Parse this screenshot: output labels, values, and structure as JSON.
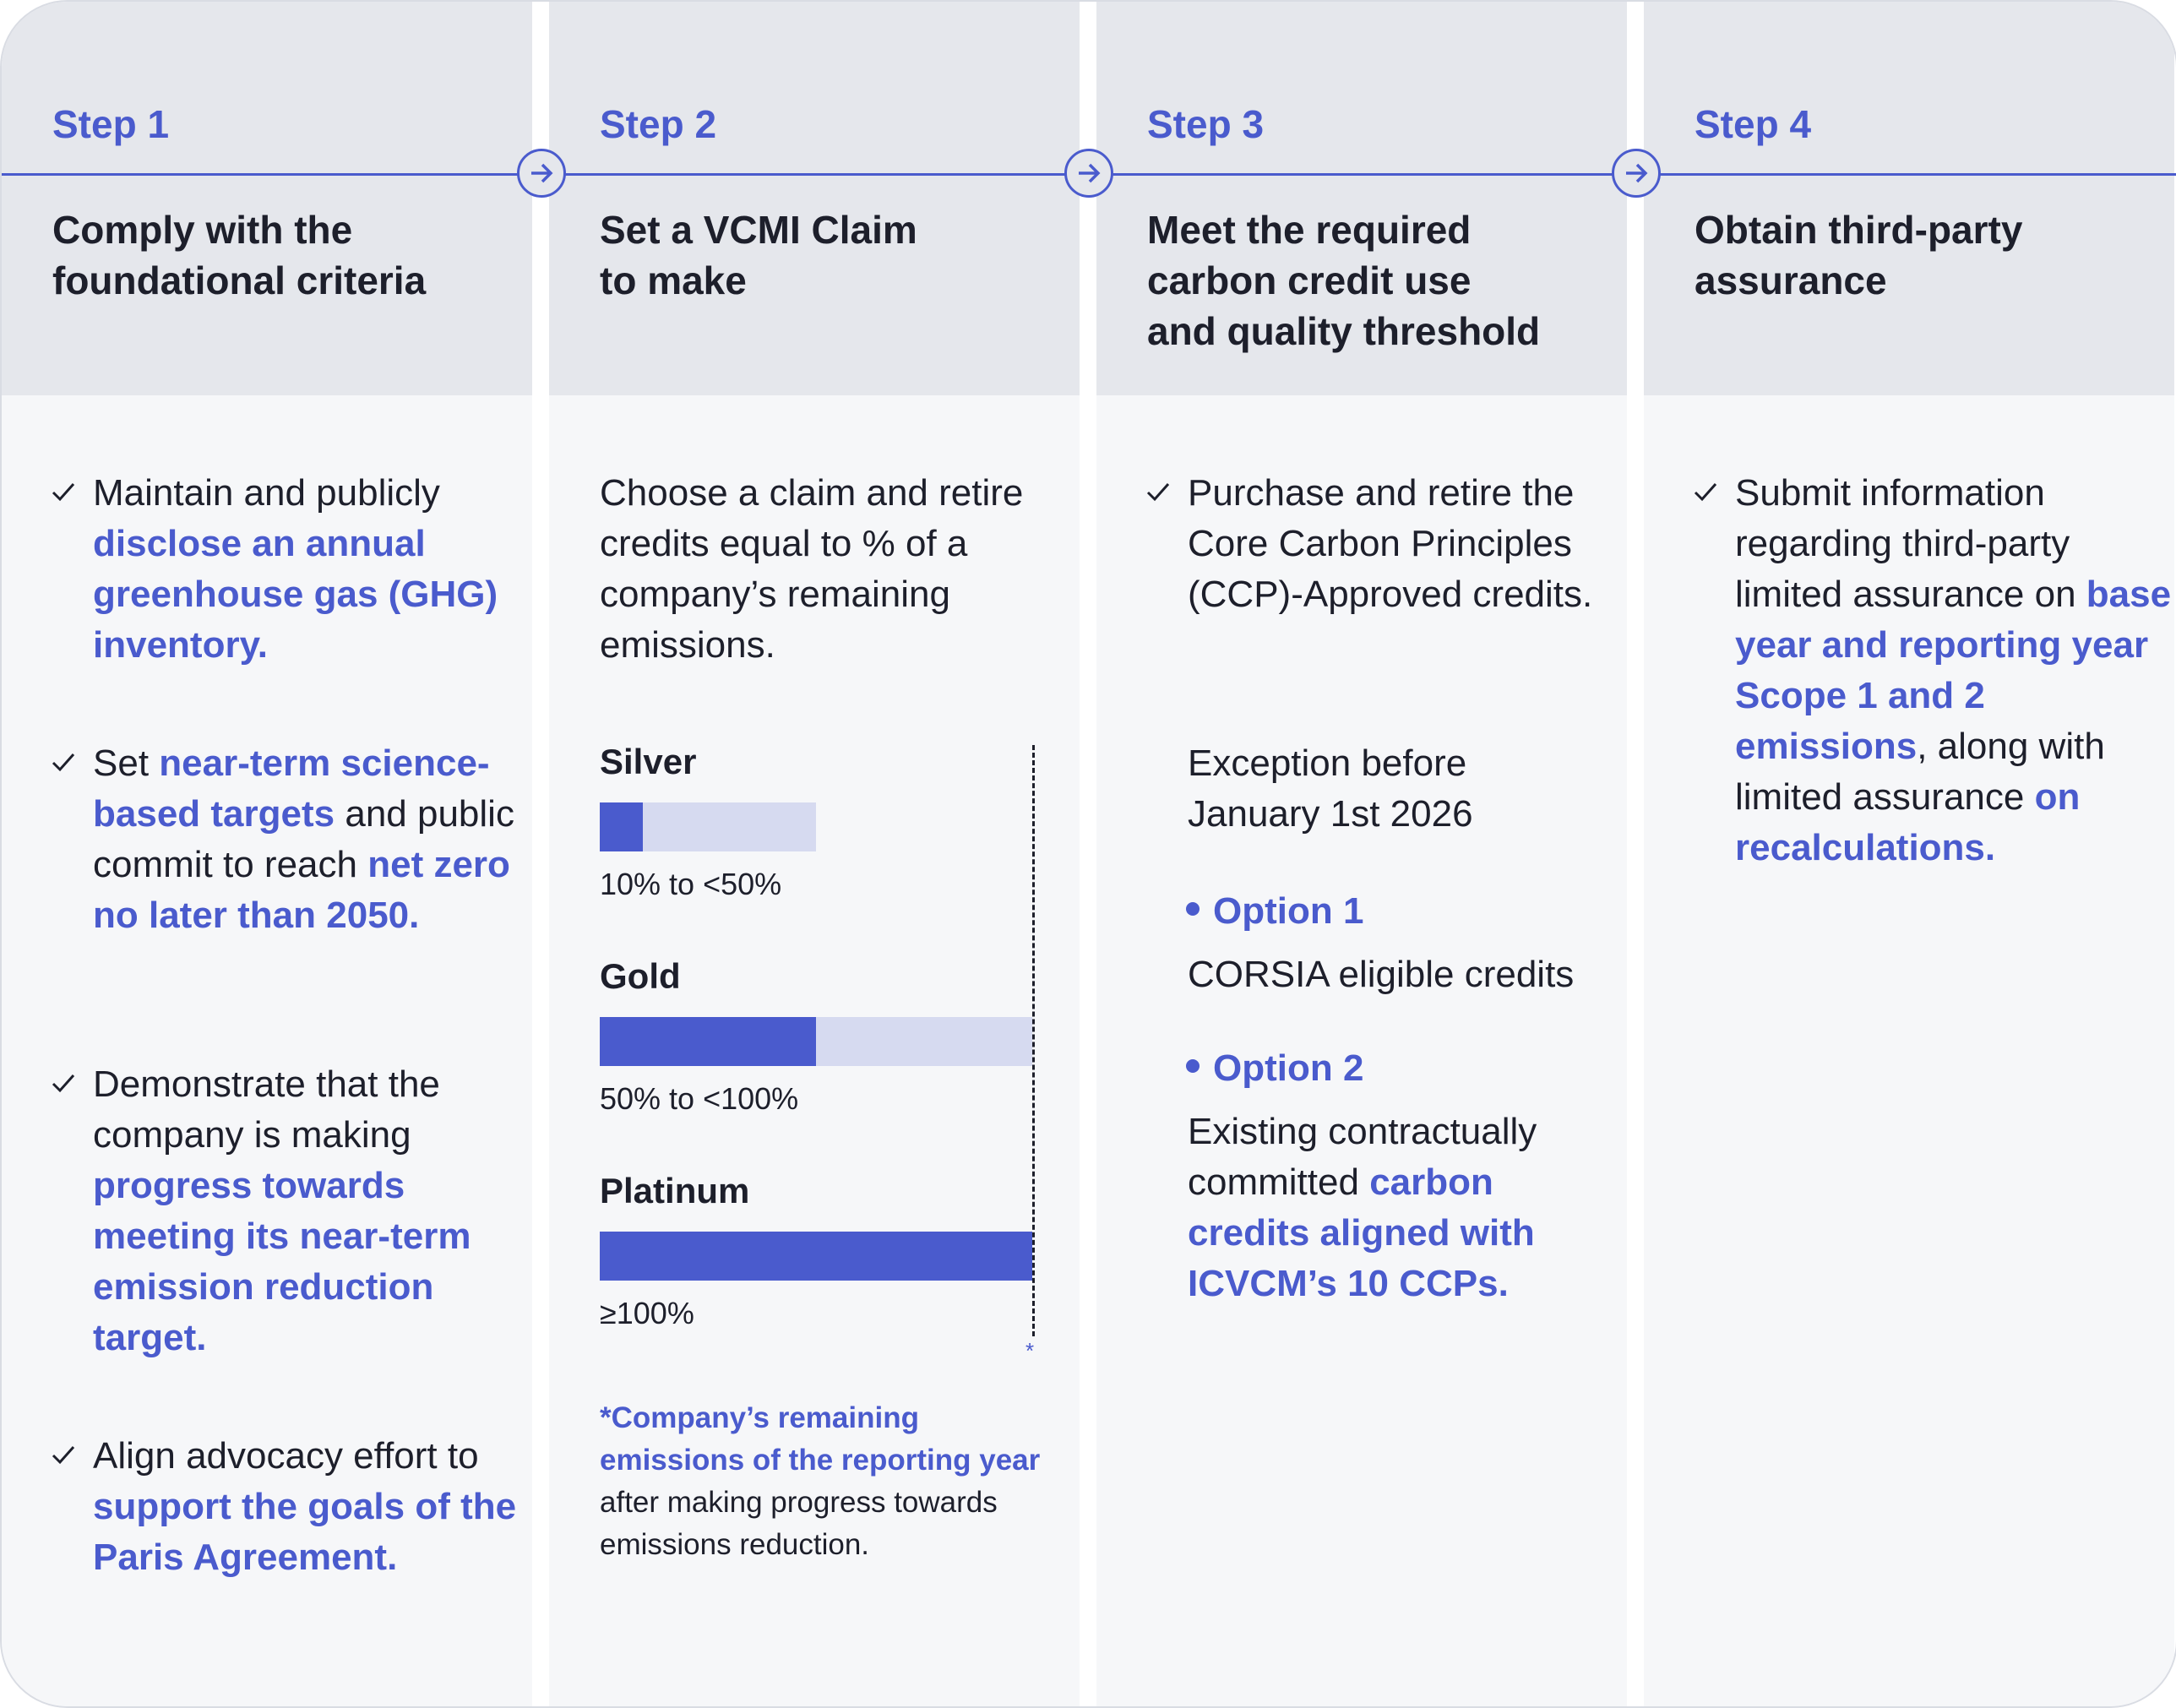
{
  "steps": [
    {
      "label": "Step 1",
      "title": "Comply with the\nfoundational criteria"
    },
    {
      "label": "Step 2",
      "title": "Set a VCMI Claim\nto make"
    },
    {
      "label": "Step 3",
      "title": "Meet the required\ncarbon credit use\nand quality threshold"
    },
    {
      "label": "Step 4",
      "title": "Obtain third-party\nassurance"
    }
  ],
  "step1": {
    "items": [
      {
        "pre": "Maintain and publicly",
        "link": "disclose an annual greenhouse gas (GHG) inventory.",
        "post": ""
      },
      {
        "pre": "Set",
        "link": "near-term science-based targets",
        "mid": "and public commit to reach",
        "link2": "net zero no later than 2050."
      },
      {
        "pre": "Demonstrate that the company is making",
        "link": "progress towards meeting its near-term emission reduction target.",
        "post": ""
      },
      {
        "pre": "Align advocacy effort to",
        "link": "support the goals of the Paris Agreement.",
        "post": ""
      }
    ]
  },
  "step2": {
    "intro": "Choose a claim and retire credits equal to % of a company’s remaining emissions.",
    "tiers": [
      {
        "name": "Silver",
        "range": "10% to <50%",
        "fill_fraction": 0.1
      },
      {
        "name": "Gold",
        "range": "50% to <100%",
        "fill_fraction": 0.5
      },
      {
        "name": "Platinum",
        "range": "≥100%",
        "fill_fraction": 1.0
      }
    ],
    "asterisk": "*",
    "footnote_highlight": "*Company’s remaining emissions of the reporting year",
    "footnote_rest": "after making progress towards emissions reduction."
  },
  "step3": {
    "item": "Purchase and retire the Core Carbon Principles (CCP)-Approved credits.",
    "exception": "Exception before January 1st 2026",
    "option1_title": "Option 1",
    "option1_text": "CORSIA eligible credits",
    "option2_title": "Option 2",
    "option2_pre": "Existing contractually committed",
    "option2_link": "carbon credits aligned with ICVCM’s 10 CCPs."
  },
  "step4": {
    "pre": "Submit information regarding third-party limited assurance on",
    "link": "base year and reporting year Scope 1 and 2 emissions",
    "mid": ", along with limited assurance",
    "link2": "on recalculations."
  },
  "colors": {
    "accent": "#4a5bcd",
    "header_bg": "#e5e7ec",
    "body_bg": "#f6f7f9",
    "track": "#d6daf0"
  }
}
